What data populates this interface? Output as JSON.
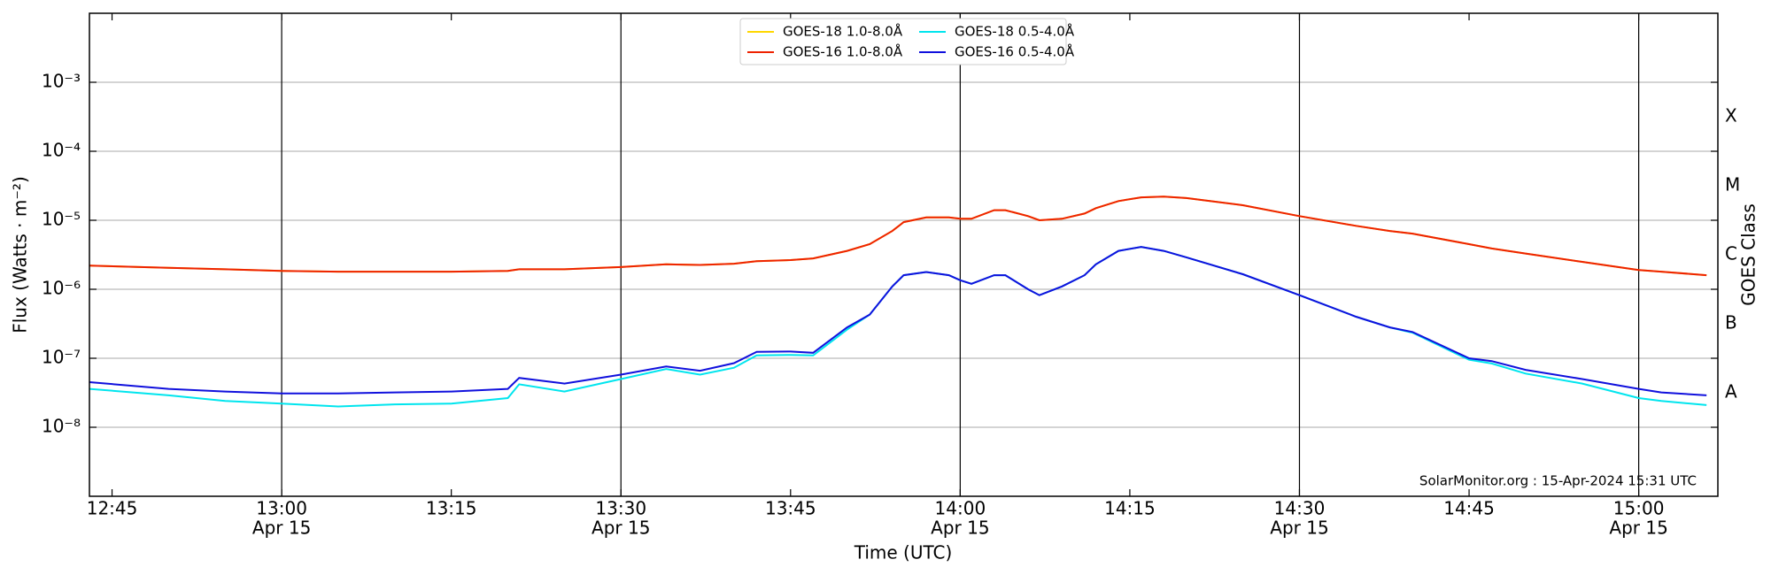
{
  "chart_data": {
    "type": "line",
    "xlabel": "Time (UTC)",
    "ylabel": "Flux (Watts · m⁻²)",
    "y2label": "GOES Class",
    "annotation": "SolarMonitor.org : 15-Apr-2024 15:31 UTC",
    "log_y": true,
    "grid": true,
    "legend": "upper center",
    "xlim": [
      "12:43",
      "15:07"
    ],
    "xticks": [
      "12:45",
      "13:00",
      "13:15",
      "13:30",
      "13:45",
      "14:00",
      "14:15",
      "14:30",
      "14:45",
      "15:00"
    ],
    "xtick_dates": [
      null,
      "Apr 15",
      null,
      "Apr 15",
      null,
      "Apr 15",
      null,
      "Apr 15",
      null,
      "Apr 15"
    ],
    "ylim": [
      1e-09,
      0.01
    ],
    "yticks": [
      {
        "value": 1e-08,
        "label": "10⁻⁸"
      },
      {
        "value": 1e-07,
        "label": "10⁻⁷"
      },
      {
        "value": 1e-06,
        "label": "10⁻⁶"
      },
      {
        "value": 1e-05,
        "label": "10⁻⁵"
      },
      {
        "value": 0.0001,
        "label": "10⁻⁴"
      },
      {
        "value": 0.001,
        "label": "10⁻³"
      }
    ],
    "goes_classes": [
      {
        "label": "A",
        "range": [
          1e-08,
          1e-07
        ]
      },
      {
        "label": "B",
        "range": [
          1e-07,
          1e-06
        ]
      },
      {
        "label": "C",
        "range": [
          1e-06,
          1e-05
        ]
      },
      {
        "label": "M",
        "range": [
          1e-05,
          0.0001
        ]
      },
      {
        "label": "X",
        "range": [
          0.0001,
          0.001
        ]
      }
    ],
    "x": [
      "12:43",
      "12:50",
      "12:55",
      "13:00",
      "13:05",
      "13:10",
      "13:15",
      "13:20",
      "13:21",
      "13:25",
      "13:30",
      "13:34",
      "13:37",
      "13:40",
      "13:42",
      "13:45",
      "13:47",
      "13:50",
      "13:52",
      "13:54",
      "13:55",
      "13:57",
      "13:59",
      "14:00",
      "14:01",
      "14:03",
      "14:04",
      "14:06",
      "14:07",
      "14:09",
      "14:11",
      "14:12",
      "14:14",
      "14:16",
      "14:18",
      "14:20",
      "14:25",
      "14:30",
      "14:35",
      "14:38",
      "14:40",
      "14:45",
      "14:47",
      "14:50",
      "14:55",
      "15:00",
      "15:02",
      "15:06"
    ],
    "series": [
      {
        "name": "GOES-18 1.0-8.0Å",
        "color": "#ffd700",
        "values": [
          2.2e-06,
          2.05e-06,
          1.95e-06,
          1.85e-06,
          1.8e-06,
          1.8e-06,
          1.8e-06,
          1.85e-06,
          1.95e-06,
          1.95e-06,
          2.1e-06,
          2.3e-06,
          2.25e-06,
          2.35e-06,
          2.55e-06,
          2.65e-06,
          2.8e-06,
          3.6e-06,
          4.5e-06,
          7e-06,
          9.4e-06,
          1.1e-05,
          1.1e-05,
          1.05e-05,
          1.05e-05,
          1.4e-05,
          1.4e-05,
          1.15e-05,
          1e-05,
          1.05e-05,
          1.25e-05,
          1.5e-05,
          1.9e-05,
          2.15e-05,
          2.2e-05,
          2.1e-05,
          1.65e-05,
          1.15e-05,
          8.3e-06,
          7e-06,
          6.4e-06,
          4.5e-06,
          3.9e-06,
          3.3e-06,
          2.5e-06,
          1.9e-06,
          1.8e-06,
          1.6e-06
        ]
      },
      {
        "name": "GOES-16 1.0-8.0Å",
        "color": "#ee2200",
        "values": [
          2.2e-06,
          2.05e-06,
          1.95e-06,
          1.85e-06,
          1.8e-06,
          1.8e-06,
          1.8e-06,
          1.85e-06,
          1.95e-06,
          1.95e-06,
          2.1e-06,
          2.3e-06,
          2.25e-06,
          2.35e-06,
          2.55e-06,
          2.65e-06,
          2.8e-06,
          3.6e-06,
          4.5e-06,
          7e-06,
          9.4e-06,
          1.1e-05,
          1.1e-05,
          1.05e-05,
          1.05e-05,
          1.4e-05,
          1.4e-05,
          1.15e-05,
          1e-05,
          1.05e-05,
          1.25e-05,
          1.5e-05,
          1.9e-05,
          2.15e-05,
          2.2e-05,
          2.1e-05,
          1.65e-05,
          1.15e-05,
          8.3e-06,
          7e-06,
          6.4e-06,
          4.5e-06,
          3.9e-06,
          3.3e-06,
          2.5e-06,
          1.9e-06,
          1.8e-06,
          1.6e-06
        ]
      },
      {
        "name": "GOES-18 0.5-4.0Å",
        "color": "#00e5ee",
        "values": [
          3.6e-08,
          2.9e-08,
          2.4e-08,
          2.2e-08,
          2e-08,
          2.15e-08,
          2.2e-08,
          2.65e-08,
          4.2e-08,
          3.3e-08,
          5e-08,
          7e-08,
          5.8e-08,
          7.3e-08,
          1.1e-07,
          1.12e-07,
          1.1e-07,
          2.6e-07,
          4.3e-07,
          1.1e-06,
          1.6e-06,
          1.78e-06,
          1.6e-06,
          1.35e-06,
          1.2e-06,
          1.6e-06,
          1.6e-06,
          1e-06,
          8.2e-07,
          1.1e-06,
          1.6e-06,
          2.3e-06,
          3.6e-06,
          4.1e-06,
          3.6e-06,
          2.9e-06,
          1.65e-06,
          8.2e-07,
          4e-07,
          2.8e-07,
          2.35e-07,
          9.5e-08,
          8.4e-08,
          6e-08,
          4.3e-08,
          2.65e-08,
          2.4e-08,
          2.1e-08
        ]
      },
      {
        "name": "GOES-16 0.5-4.0Å",
        "color": "#1010dd",
        "values": [
          4.5e-08,
          3.6e-08,
          3.3e-08,
          3.1e-08,
          3.1e-08,
          3.2e-08,
          3.3e-08,
          3.6e-08,
          5.2e-08,
          4.3e-08,
          5.8e-08,
          7.6e-08,
          6.6e-08,
          8.5e-08,
          1.24e-07,
          1.25e-07,
          1.2e-07,
          2.8e-07,
          4.3e-07,
          1.1e-06,
          1.6e-06,
          1.78e-06,
          1.6e-06,
          1.35e-06,
          1.2e-06,
          1.6e-06,
          1.6e-06,
          1e-06,
          8.2e-07,
          1.1e-06,
          1.6e-06,
          2.3e-06,
          3.6e-06,
          4.1e-06,
          3.6e-06,
          2.9e-06,
          1.65e-06,
          8.2e-07,
          4e-07,
          2.8e-07,
          2.4e-07,
          1e-07,
          9.1e-08,
          6.8e-08,
          5e-08,
          3.6e-08,
          3.2e-08,
          2.9e-08
        ]
      }
    ]
  }
}
